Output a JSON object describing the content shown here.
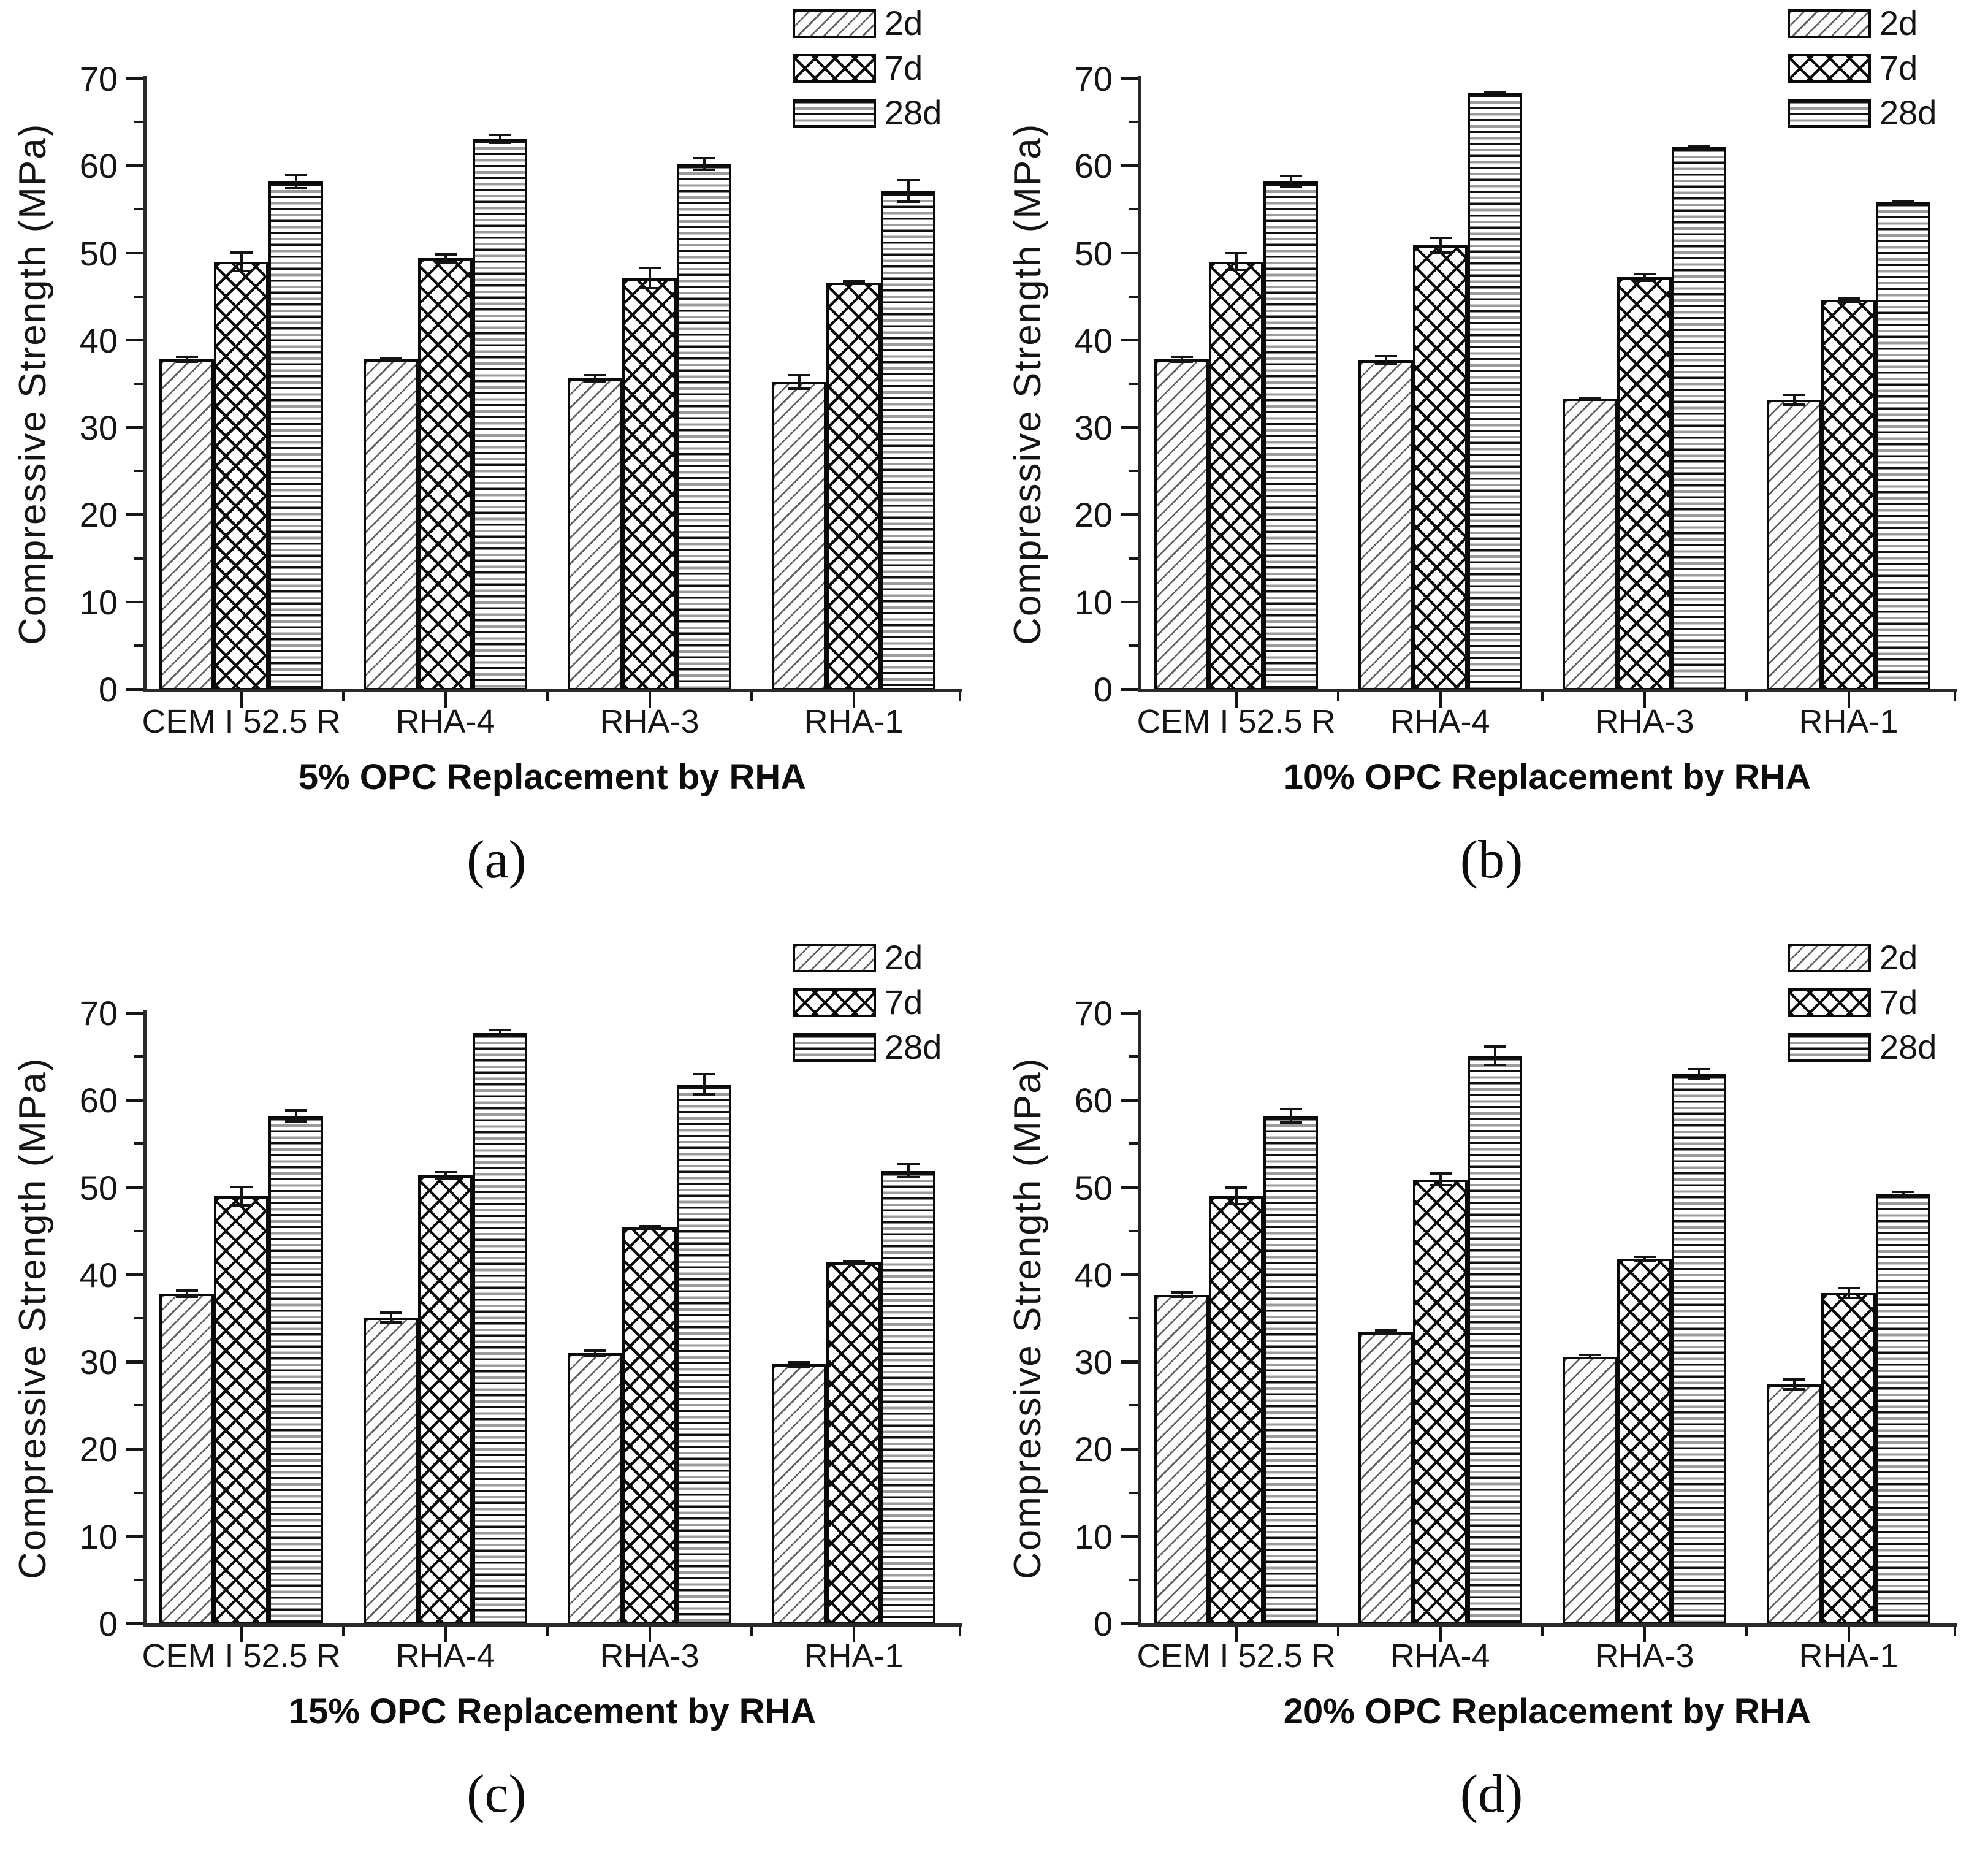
{
  "figure": {
    "y_axis_label": "Compressive Strength (MPa)",
    "y_ticks": [
      "0",
      "10",
      "20",
      "30",
      "40",
      "50",
      "60",
      "70"
    ],
    "legend": [
      {
        "label": "2d",
        "pattern": "diagonal-hatch"
      },
      {
        "label": "7d",
        "pattern": "crosshatch"
      },
      {
        "label": "28d",
        "pattern": "horizontal-stripes"
      }
    ]
  },
  "chart_data": [
    {
      "id": "a",
      "type": "bar",
      "title": "5% OPC Replacement by RHA",
      "caption": "(a)",
      "ylabel": "Compressive Strength (MPa)",
      "ylim": [
        0,
        70
      ],
      "grid": false,
      "legend_position": "top-right",
      "categories": [
        "CEM I 52.5 R",
        "RHA-4",
        "RHA-3",
        "RHA-1"
      ],
      "series": [
        {
          "name": "2d",
          "values": [
            37.8,
            37.8,
            35.6,
            35.2
          ],
          "errors": [
            0.4,
            0.2,
            0.5,
            0.9
          ]
        },
        {
          "name": "7d",
          "values": [
            49.0,
            49.4,
            47.1,
            46.6
          ],
          "errors": [
            1.2,
            0.6,
            1.3,
            0.3
          ]
        },
        {
          "name": "28d",
          "values": [
            58.2,
            63.1,
            60.2,
            57.1
          ],
          "errors": [
            0.9,
            0.6,
            0.8,
            1.4
          ]
        }
      ]
    },
    {
      "id": "b",
      "type": "bar",
      "title": "10% OPC Replacement by RHA",
      "caption": "(b)",
      "ylabel": "Compressive Strength (MPa)",
      "ylim": [
        0,
        70
      ],
      "grid": false,
      "legend_position": "top-right",
      "categories": [
        "CEM I 52.5 R",
        "RHA-4",
        "RHA-3",
        "RHA-1"
      ],
      "series": [
        {
          "name": "2d",
          "values": [
            37.8,
            37.7,
            33.3,
            33.2
          ],
          "errors": [
            0.4,
            0.6,
            0.2,
            0.7
          ]
        },
        {
          "name": "7d",
          "values": [
            49.0,
            50.9,
            47.2,
            44.6
          ],
          "errors": [
            1.1,
            1.0,
            0.5,
            0.3
          ]
        },
        {
          "name": "28d",
          "values": [
            58.2,
            68.4,
            62.1,
            55.9
          ],
          "errors": [
            0.8,
            0.2,
            0.3,
            0.2
          ]
        }
      ]
    },
    {
      "id": "c",
      "type": "bar",
      "title": "15% OPC Replacement by RHA",
      "caption": "(c)",
      "ylabel": "Compressive Strength (MPa)",
      "ylim": [
        0,
        70
      ],
      "grid": false,
      "legend_position": "top-right",
      "categories": [
        "CEM I 52.5 R",
        "RHA-4",
        "RHA-3",
        "RHA-1"
      ],
      "series": [
        {
          "name": "2d",
          "values": [
            37.8,
            35.1,
            31.0,
            29.7
          ],
          "errors": [
            0.5,
            0.7,
            0.4,
            0.4
          ]
        },
        {
          "name": "7d",
          "values": [
            49.0,
            51.4,
            45.4,
            41.4
          ],
          "errors": [
            1.2,
            0.5,
            0.3,
            0.3
          ]
        },
        {
          "name": "28d",
          "values": [
            58.2,
            67.7,
            61.8,
            51.9
          ],
          "errors": [
            0.8,
            0.5,
            1.3,
            0.9
          ]
        }
      ]
    },
    {
      "id": "d",
      "type": "bar",
      "title": "20% OPC Replacement by RHA",
      "caption": "(d)",
      "ylabel": "Compressive Strength (MPa)",
      "ylim": [
        0,
        70
      ],
      "grid": false,
      "legend_position": "top-right",
      "categories": [
        "CEM I 52.5 R",
        "RHA-4",
        "RHA-3",
        "RHA-1"
      ],
      "series": [
        {
          "name": "2d",
          "values": [
            37.7,
            33.4,
            30.6,
            27.4
          ],
          "errors": [
            0.4,
            0.3,
            0.3,
            0.7
          ]
        },
        {
          "name": "7d",
          "values": [
            49.0,
            50.9,
            41.8,
            37.9
          ],
          "errors": [
            1.1,
            0.8,
            0.4,
            0.7
          ]
        },
        {
          "name": "28d",
          "values": [
            58.2,
            65.1,
            63.0,
            49.3
          ],
          "errors": [
            0.9,
            1.2,
            0.7,
            0.3
          ]
        }
      ]
    }
  ]
}
